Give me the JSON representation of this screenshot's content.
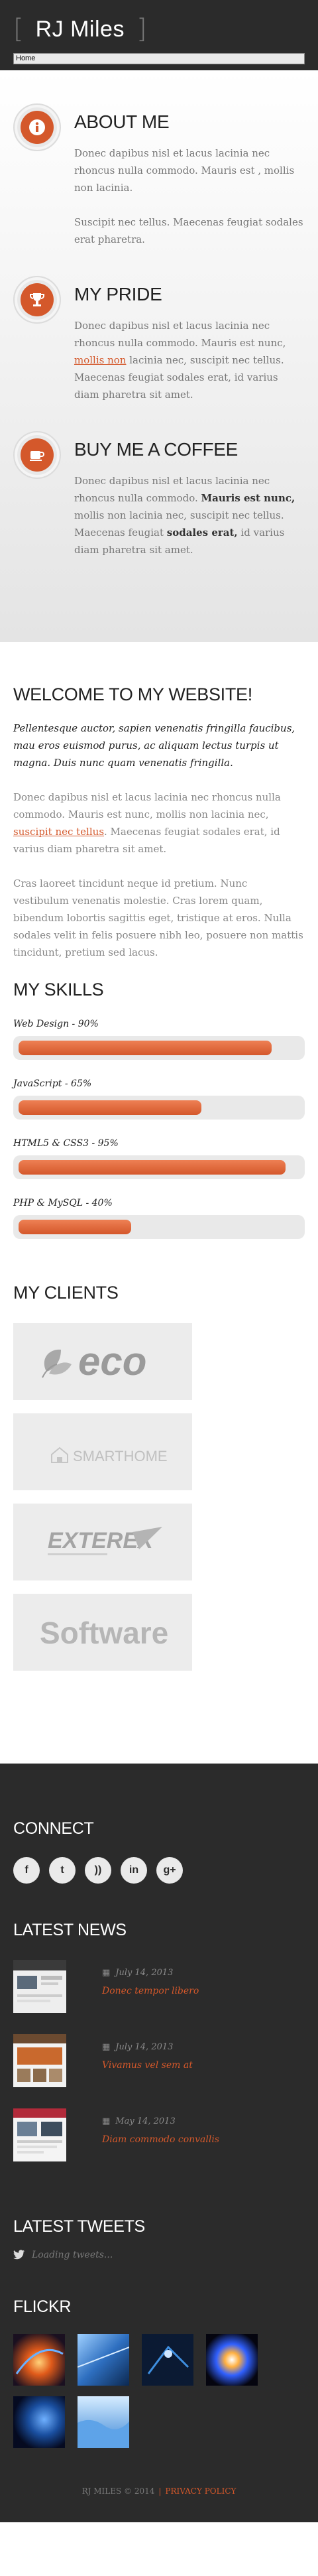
{
  "header": {
    "logo_text": "RJ Miles",
    "bracket_left": "[",
    "bracket_right": "]",
    "nav_selected": "Home"
  },
  "features": [
    {
      "icon": "info-icon",
      "title": "ABOUT ME",
      "p1": "Donec dapibus nisl et lacus lacinia nec rhoncus nulla commodo. Mauris est , mollis non lacinia.",
      "p2": "Suscipit nec tellus. Maecenas feugiat sodales erat pharetra."
    },
    {
      "icon": "trophy-icon",
      "title": "MY PRIDE",
      "t1": "Donec dapibus nisl et lacus lacinia nec rhoncus nulla commodo. Mauris est nunc, ",
      "link": "mollis non",
      "t2": " lacinia nec, suscipit nec tellus. Maecenas feugiat sodales erat, id varius diam pharetra sit amet."
    },
    {
      "icon": "coffee-icon",
      "title": "BUY ME A COFFEE",
      "t1": "Donec dapibus nisl et lacus lacinia nec rhoncus nulla commodo. ",
      "bold1": "Mauris est nunc,",
      "t2": " mollis non lacinia nec, suscipit nec tellus. Maecenas feugiat ",
      "bold2": "sodales erat,",
      "t3": " id varius diam pharetra sit amet."
    }
  ],
  "welcome": {
    "title": "WELCOME TO MY WEBSITE!",
    "lead": "Pellentesque auctor, sapien venenatis fringilla faucibus, mau eros euismod purus, ac aliquam lectus turpis ut magna. Duis nunc quam venenatis fringilla.",
    "p1_a": "Donec dapibus nisl et lacus lacinia nec rhoncus nulla commodo. Mauris est nunc, mollis non lacinia nec, ",
    "p1_link": "suscipit nec tellus",
    "p1_b": ". Maecenas feugiat sodales erat, id varius diam pharetra sit amet.",
    "p2": "Cras laoreet tincidunt neque id pretium. Nunc vestibulum venenatis molestie. Cras lorem quam, bibendum lobortis sagittis eget, tristique at eros. Nulla sodales velit in felis posuere nibh leo, posuere non mattis tincidunt, pretium sed lacus."
  },
  "skills": {
    "title": "MY SKILLS",
    "items": [
      {
        "label": "Web Design - 90%",
        "percent": 90
      },
      {
        "label": "JavaScript - 65%",
        "percent": 65
      },
      {
        "label": "HTML5 & CSS3 - 95%",
        "percent": 95
      },
      {
        "label": "PHP & MySQL - 40%",
        "percent": 40
      }
    ]
  },
  "clients": {
    "title": "MY CLIENTS",
    "logos": [
      "eco",
      "SMARTHOME",
      "EXTEREX",
      "Software"
    ]
  },
  "footer": {
    "connect_title": "CONNECT",
    "socials": [
      "facebook-icon",
      "twitter-icon",
      "rss-icon",
      "linkedin-icon",
      "googleplus-icon"
    ],
    "social_glyphs": [
      "f",
      "t",
      "))",
      "in",
      "g+"
    ],
    "news_title": "LATEST NEWS",
    "news": [
      {
        "date": "July 14, 2013",
        "title": "Donec tempor libero"
      },
      {
        "date": "July 14, 2013",
        "title": "Vivamus vel sem at"
      },
      {
        "date": "May 14, 2013",
        "title": "Diam commodo convallis"
      }
    ],
    "tweets_title": "LATEST TWEETS",
    "tweets_loading": "Loading tweets...",
    "flickr_title": "FLICKR",
    "copyright": "RJ MILES © 2014",
    "separator": "|",
    "privacy": "PRIVACY POLICY"
  },
  "colors": {
    "accent": "#d4582b",
    "dark": "#2b2b2b"
  }
}
